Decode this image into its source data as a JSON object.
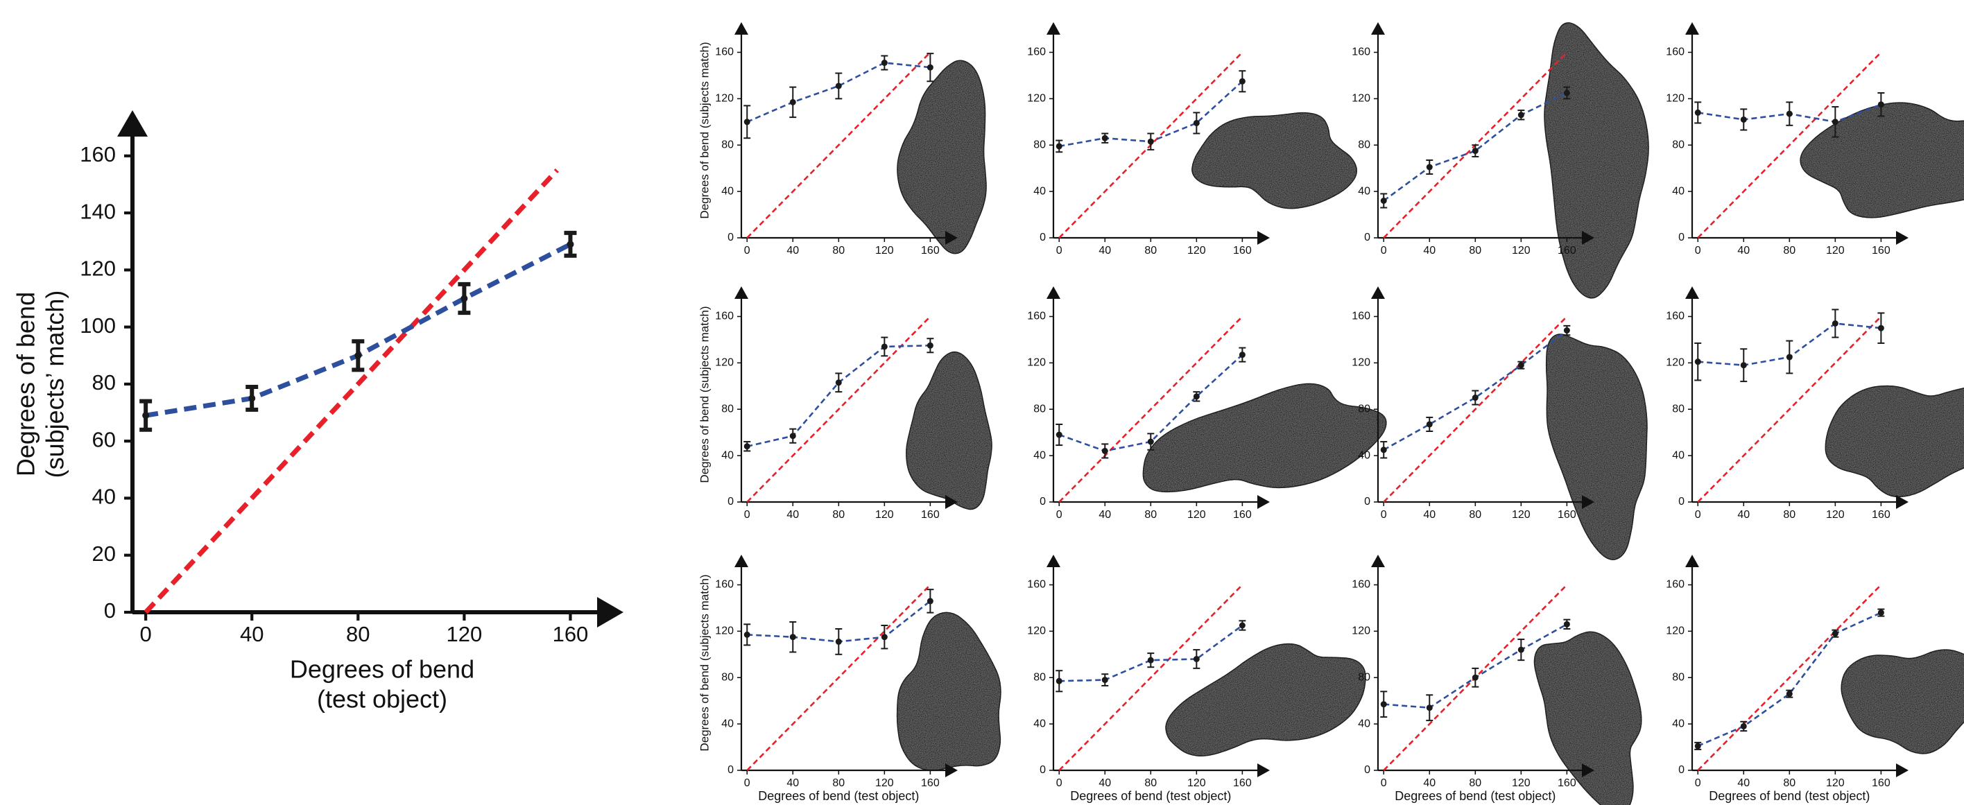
{
  "chart_data": [
    {
      "type": "line",
      "xlabel": [
        "Degrees of bend",
        "(test object)"
      ],
      "ylabel": [
        "Degrees of bend",
        "(subjects’ match)"
      ],
      "x": [
        0,
        40,
        80,
        120,
        160
      ],
      "xlim": [
        -5,
        180
      ],
      "ylim": [
        0,
        176
      ],
      "xticks": [
        0,
        40,
        80,
        120,
        160
      ],
      "yticks": [
        0,
        20,
        40,
        60,
        80,
        100,
        120,
        140,
        160
      ],
      "series": [
        {
          "color": "#2e4f9e",
          "values": [
            69,
            75,
            90,
            110,
            129
          ],
          "errors": [
            5,
            4,
            5,
            5,
            4
          ]
        },
        {
          "color": "#e8202a",
          "x": [
            0,
            155
          ],
          "values": [
            0,
            155
          ]
        }
      ]
    },
    {
      "type": "line",
      "ylabel": "Degrees of bend (subjects match)",
      "x": [
        0,
        40,
        80,
        120,
        160
      ],
      "xlim": [
        -5,
        184
      ],
      "ylim": [
        0,
        186
      ],
      "xticks": [
        0,
        40,
        80,
        120,
        160
      ],
      "yticks": [
        0,
        40,
        80,
        120,
        160
      ],
      "series": [
        {
          "color": "#2e4f9e",
          "values": [
            100,
            117,
            131,
            151,
            147
          ],
          "errors": [
            14,
            13,
            11,
            6,
            12
          ]
        },
        {
          "color": "#e8202a",
          "x": [
            0,
            160
          ],
          "values": [
            0,
            160
          ]
        }
      ]
    },
    {
      "type": "line",
      "x": [
        0,
        40,
        80,
        120,
        160
      ],
      "xlim": [
        -5,
        184
      ],
      "ylim": [
        0,
        186
      ],
      "xticks": [
        0,
        40,
        80,
        120,
        160
      ],
      "yticks": [
        0,
        40,
        80,
        120,
        160
      ],
      "series": [
        {
          "color": "#2e4f9e",
          "values": [
            79,
            86,
            83,
            99,
            135
          ],
          "errors": [
            5,
            4,
            7,
            9,
            9
          ]
        },
        {
          "color": "#e8202a",
          "x": [
            0,
            160
          ],
          "values": [
            0,
            160
          ]
        }
      ]
    },
    {
      "type": "line",
      "x": [
        0,
        40,
        80,
        120,
        160
      ],
      "xlim": [
        -5,
        184
      ],
      "ylim": [
        0,
        186
      ],
      "xticks": [
        0,
        40,
        80,
        120,
        160
      ],
      "yticks": [
        0,
        40,
        80,
        120,
        160
      ],
      "series": [
        {
          "color": "#2e4f9e",
          "values": [
            32,
            61,
            75,
            106,
            125
          ],
          "errors": [
            6,
            6,
            5,
            4,
            5
          ]
        },
        {
          "color": "#e8202a",
          "x": [
            0,
            160
          ],
          "values": [
            0,
            160
          ]
        }
      ]
    },
    {
      "type": "line",
      "x": [
        0,
        40,
        80,
        120,
        160
      ],
      "xlim": [
        -5,
        184
      ],
      "ylim": [
        0,
        186
      ],
      "xticks": [
        0,
        40,
        80,
        120,
        160
      ],
      "yticks": [
        0,
        40,
        80,
        120,
        160
      ],
      "series": [
        {
          "color": "#2e4f9e",
          "values": [
            108,
            102,
            107,
            100,
            115
          ],
          "errors": [
            9,
            9,
            10,
            13,
            10
          ]
        },
        {
          "color": "#e8202a",
          "x": [
            0,
            160
          ],
          "values": [
            0,
            160
          ]
        }
      ]
    },
    {
      "type": "line",
      "ylabel": "Degrees of bend (subjects match)",
      "x": [
        0,
        40,
        80,
        120,
        160
      ],
      "xlim": [
        -5,
        184
      ],
      "ylim": [
        0,
        186
      ],
      "xticks": [
        0,
        40,
        80,
        120,
        160
      ],
      "yticks": [
        0,
        40,
        80,
        120,
        160
      ],
      "series": [
        {
          "color": "#2e4f9e",
          "values": [
            48,
            57,
            103,
            134,
            135
          ],
          "errors": [
            4,
            6,
            8,
            8,
            6
          ]
        },
        {
          "color": "#e8202a",
          "x": [
            0,
            160
          ],
          "values": [
            0,
            160
          ]
        }
      ]
    },
    {
      "type": "line",
      "x": [
        0,
        40,
        80,
        120,
        160
      ],
      "xlim": [
        -5,
        184
      ],
      "ylim": [
        0,
        186
      ],
      "xticks": [
        0,
        40,
        80,
        120,
        160
      ],
      "yticks": [
        0,
        40,
        80,
        120,
        160
      ],
      "series": [
        {
          "color": "#2e4f9e",
          "values": [
            58,
            44,
            52,
            91,
            127
          ],
          "errors": [
            9,
            6,
            7,
            4,
            6
          ]
        },
        {
          "color": "#e8202a",
          "x": [
            0,
            160
          ],
          "values": [
            0,
            160
          ]
        }
      ]
    },
    {
      "type": "line",
      "x": [
        0,
        40,
        80,
        120,
        160
      ],
      "xlim": [
        -5,
        184
      ],
      "ylim": [
        0,
        186
      ],
      "xticks": [
        0,
        40,
        80,
        120,
        160
      ],
      "yticks": [
        0,
        40,
        80,
        120,
        160
      ],
      "series": [
        {
          "color": "#2e4f9e",
          "values": [
            45,
            67,
            90,
            118,
            148
          ],
          "errors": [
            7,
            6,
            6,
            3,
            4
          ]
        },
        {
          "color": "#e8202a",
          "x": [
            0,
            160
          ],
          "values": [
            0,
            160
          ]
        }
      ]
    },
    {
      "type": "line",
      "x": [
        0,
        40,
        80,
        120,
        160
      ],
      "xlim": [
        -5,
        184
      ],
      "ylim": [
        0,
        186
      ],
      "xticks": [
        0,
        40,
        80,
        120,
        160
      ],
      "yticks": [
        0,
        40,
        80,
        120,
        160
      ],
      "series": [
        {
          "color": "#2e4f9e",
          "values": [
            121,
            118,
            125,
            154,
            150
          ],
          "errors": [
            16,
            14,
            14,
            12,
            13
          ]
        },
        {
          "color": "#e8202a",
          "x": [
            0,
            160
          ],
          "values": [
            0,
            160
          ]
        }
      ]
    },
    {
      "type": "line",
      "xlabel": "Degrees of bend (test object)",
      "ylabel": "Degrees of bend (subjects match)",
      "x": [
        0,
        40,
        80,
        120,
        160
      ],
      "xlim": [
        -5,
        184
      ],
      "ylim": [
        0,
        186
      ],
      "xticks": [
        0,
        40,
        80,
        120,
        160
      ],
      "yticks": [
        0,
        40,
        80,
        120,
        160
      ],
      "series": [
        {
          "color": "#2e4f9e",
          "values": [
            117,
            115,
            111,
            115,
            146
          ],
          "errors": [
            9,
            13,
            11,
            10,
            10
          ]
        },
        {
          "color": "#e8202a",
          "x": [
            0,
            160
          ],
          "values": [
            0,
            160
          ]
        }
      ]
    },
    {
      "type": "line",
      "xlabel": "Degrees of bend (test object)",
      "x": [
        0,
        40,
        80,
        120,
        160
      ],
      "xlim": [
        -5,
        184
      ],
      "ylim": [
        0,
        186
      ],
      "xticks": [
        0,
        40,
        80,
        120,
        160
      ],
      "yticks": [
        0,
        40,
        80,
        120,
        160
      ],
      "series": [
        {
          "color": "#2e4f9e",
          "values": [
            77,
            78,
            95,
            96,
            125
          ],
          "errors": [
            9,
            5,
            6,
            8,
            4
          ]
        },
        {
          "color": "#e8202a",
          "x": [
            0,
            160
          ],
          "values": [
            0,
            160
          ]
        }
      ]
    },
    {
      "type": "line",
      "xlabel": "Degrees of bend (test object)",
      "x": [
        0,
        40,
        80,
        120,
        160
      ],
      "xlim": [
        -5,
        184
      ],
      "ylim": [
        0,
        186
      ],
      "xticks": [
        0,
        40,
        80,
        120,
        160
      ],
      "yticks": [
        0,
        40,
        80,
        120,
        160
      ],
      "series": [
        {
          "color": "#2e4f9e",
          "values": [
            57,
            54,
            80,
            104,
            126
          ],
          "errors": [
            11,
            11,
            8,
            9,
            4
          ]
        },
        {
          "color": "#e8202a",
          "x": [
            0,
            160
          ],
          "values": [
            0,
            160
          ]
        }
      ]
    },
    {
      "type": "line",
      "xlabel": "Degrees of bend (test object)",
      "x": [
        0,
        40,
        80,
        120,
        160
      ],
      "xlim": [
        -5,
        184
      ],
      "ylim": [
        0,
        186
      ],
      "xticks": [
        0,
        40,
        80,
        120,
        160
      ],
      "yticks": [
        0,
        40,
        80,
        120,
        160
      ],
      "series": [
        {
          "color": "#2e4f9e",
          "values": [
            21,
            38,
            66,
            118,
            136
          ],
          "errors": [
            3,
            4,
            3,
            3,
            3
          ]
        },
        {
          "color": "#e8202a",
          "x": [
            0,
            160
          ],
          "values": [
            0,
            160
          ]
        }
      ]
    }
  ]
}
